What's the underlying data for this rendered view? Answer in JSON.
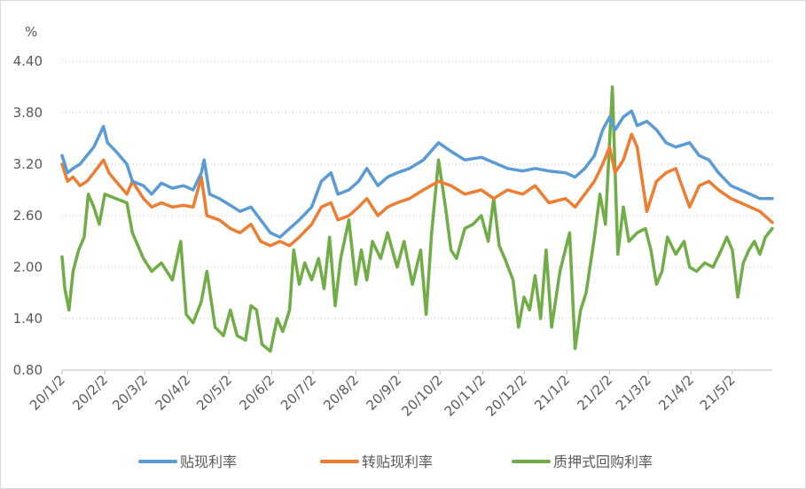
{
  "chart_data": {
    "type": "line",
    "ylabel": "%",
    "ylim": [
      0.8,
      4.4
    ],
    "y_ticks": [
      "4.40",
      "3.80",
      "3.20",
      "2.60",
      "2.00",
      "1.40",
      "0.80"
    ],
    "x_tick_labels": [
      "20/1/2",
      "20/2/2",
      "20/3/2",
      "20/4/2",
      "20/5/2",
      "20/6/2",
      "20/7/2",
      "20/8/2",
      "20/9/2",
      "20/10/2",
      "20/11/2",
      "20/12/2",
      "21/1/2",
      "21/2/2",
      "21/3/2",
      "21/4/2",
      "21/5/2"
    ],
    "x_range": [
      "2020-01-02",
      "2021-05-31"
    ],
    "grid": "horizontal-dotted",
    "legend_position": "bottom",
    "series": [
      {
        "name": "贴现利率",
        "color": "#5b9bd5",
        "points": [
          [
            "2020-01-02",
            3.3
          ],
          [
            "2020-01-06",
            3.1
          ],
          [
            "2020-01-10",
            3.15
          ],
          [
            "2020-01-15",
            3.2
          ],
          [
            "2020-01-20",
            3.3
          ],
          [
            "2020-01-25",
            3.4
          ],
          [
            "2020-02-01",
            3.64
          ],
          [
            "2020-02-04",
            3.45
          ],
          [
            "2020-02-10",
            3.35
          ],
          [
            "2020-02-18",
            3.2
          ],
          [
            "2020-02-22",
            3.0
          ],
          [
            "2020-03-01",
            2.95
          ],
          [
            "2020-03-07",
            2.85
          ],
          [
            "2020-03-14",
            2.98
          ],
          [
            "2020-03-22",
            2.92
          ],
          [
            "2020-03-30",
            2.95
          ],
          [
            "2020-04-06",
            2.9
          ],
          [
            "2020-04-12",
            3.1
          ],
          [
            "2020-04-14",
            3.25
          ],
          [
            "2020-04-18",
            2.85
          ],
          [
            "2020-04-25",
            2.8
          ],
          [
            "2020-05-03",
            2.72
          ],
          [
            "2020-05-10",
            2.65
          ],
          [
            "2020-05-18",
            2.7
          ],
          [
            "2020-05-25",
            2.55
          ],
          [
            "2020-06-01",
            2.4
          ],
          [
            "2020-06-08",
            2.35
          ],
          [
            "2020-06-15",
            2.45
          ],
          [
            "2020-06-22",
            2.55
          ],
          [
            "2020-07-01",
            2.7
          ],
          [
            "2020-07-08",
            3.0
          ],
          [
            "2020-07-15",
            3.1
          ],
          [
            "2020-07-20",
            2.85
          ],
          [
            "2020-07-28",
            2.9
          ],
          [
            "2020-08-04",
            3.0
          ],
          [
            "2020-08-10",
            3.15
          ],
          [
            "2020-08-18",
            2.95
          ],
          [
            "2020-08-25",
            3.05
          ],
          [
            "2020-09-01",
            3.1
          ],
          [
            "2020-09-10",
            3.15
          ],
          [
            "2020-09-20",
            3.25
          ],
          [
            "2020-10-01",
            3.45
          ],
          [
            "2020-10-10",
            3.35
          ],
          [
            "2020-10-20",
            3.25
          ],
          [
            "2020-11-01",
            3.28
          ],
          [
            "2020-11-10",
            3.22
          ],
          [
            "2020-11-20",
            3.15
          ],
          [
            "2020-12-01",
            3.12
          ],
          [
            "2020-12-10",
            3.15
          ],
          [
            "2020-12-20",
            3.12
          ],
          [
            "2021-01-01",
            3.1
          ],
          [
            "2021-01-08",
            3.05
          ],
          [
            "2021-01-15",
            3.15
          ],
          [
            "2021-01-22",
            3.3
          ],
          [
            "2021-01-28",
            3.6
          ],
          [
            "2021-02-02",
            3.75
          ],
          [
            "2021-02-06",
            3.6
          ],
          [
            "2021-02-12",
            3.75
          ],
          [
            "2021-02-18",
            3.82
          ],
          [
            "2021-02-22",
            3.65
          ],
          [
            "2021-03-01",
            3.7
          ],
          [
            "2021-03-08",
            3.6
          ],
          [
            "2021-03-15",
            3.45
          ],
          [
            "2021-03-22",
            3.4
          ],
          [
            "2021-04-01",
            3.45
          ],
          [
            "2021-04-08",
            3.3
          ],
          [
            "2021-04-15",
            3.25
          ],
          [
            "2021-04-22",
            3.1
          ],
          [
            "2021-05-01",
            2.95
          ],
          [
            "2021-05-08",
            2.9
          ],
          [
            "2021-05-15",
            2.85
          ],
          [
            "2021-05-22",
            2.8
          ],
          [
            "2021-05-31",
            2.8
          ]
        ]
      },
      {
        "name": "转贴现利率",
        "color": "#ed7d31",
        "points": [
          [
            "2020-01-02",
            3.2
          ],
          [
            "2020-01-06",
            3.0
          ],
          [
            "2020-01-10",
            3.05
          ],
          [
            "2020-01-15",
            2.95
          ],
          [
            "2020-01-20",
            3.0
          ],
          [
            "2020-01-25",
            3.1
          ],
          [
            "2020-02-01",
            3.25
          ],
          [
            "2020-02-05",
            3.1
          ],
          [
            "2020-02-10",
            3.0
          ],
          [
            "2020-02-18",
            2.85
          ],
          [
            "2020-02-22",
            3.0
          ],
          [
            "2020-03-01",
            2.8
          ],
          [
            "2020-03-07",
            2.7
          ],
          [
            "2020-03-14",
            2.75
          ],
          [
            "2020-03-22",
            2.7
          ],
          [
            "2020-03-30",
            2.72
          ],
          [
            "2020-04-06",
            2.7
          ],
          [
            "2020-04-12",
            3.05
          ],
          [
            "2020-04-16",
            2.6
          ],
          [
            "2020-04-25",
            2.55
          ],
          [
            "2020-05-03",
            2.45
          ],
          [
            "2020-05-10",
            2.4
          ],
          [
            "2020-05-18",
            2.5
          ],
          [
            "2020-05-25",
            2.3
          ],
          [
            "2020-06-01",
            2.25
          ],
          [
            "2020-06-08",
            2.3
          ],
          [
            "2020-06-15",
            2.25
          ],
          [
            "2020-06-22",
            2.35
          ],
          [
            "2020-07-01",
            2.5
          ],
          [
            "2020-07-08",
            2.7
          ],
          [
            "2020-07-15",
            2.75
          ],
          [
            "2020-07-20",
            2.55
          ],
          [
            "2020-07-28",
            2.6
          ],
          [
            "2020-08-04",
            2.7
          ],
          [
            "2020-08-10",
            2.8
          ],
          [
            "2020-08-18",
            2.6
          ],
          [
            "2020-08-25",
            2.7
          ],
          [
            "2020-09-01",
            2.75
          ],
          [
            "2020-09-10",
            2.8
          ],
          [
            "2020-09-20",
            2.9
          ],
          [
            "2020-10-01",
            3.0
          ],
          [
            "2020-10-10",
            2.95
          ],
          [
            "2020-10-20",
            2.85
          ],
          [
            "2020-11-01",
            2.9
          ],
          [
            "2020-11-10",
            2.8
          ],
          [
            "2020-11-20",
            2.9
          ],
          [
            "2020-12-01",
            2.85
          ],
          [
            "2020-12-10",
            2.95
          ],
          [
            "2020-12-20",
            2.75
          ],
          [
            "2021-01-01",
            2.8
          ],
          [
            "2021-01-08",
            2.7
          ],
          [
            "2021-01-15",
            2.85
          ],
          [
            "2021-01-22",
            3.0
          ],
          [
            "2021-01-28",
            3.2
          ],
          [
            "2021-02-02",
            3.4
          ],
          [
            "2021-02-06",
            3.1
          ],
          [
            "2021-02-12",
            3.25
          ],
          [
            "2021-02-18",
            3.55
          ],
          [
            "2021-02-22",
            3.4
          ],
          [
            "2021-03-01",
            2.65
          ],
          [
            "2021-03-08",
            3.0
          ],
          [
            "2021-03-15",
            3.1
          ],
          [
            "2021-03-22",
            3.15
          ],
          [
            "2021-04-01",
            2.7
          ],
          [
            "2021-04-08",
            2.95
          ],
          [
            "2021-04-15",
            3.0
          ],
          [
            "2021-04-22",
            2.9
          ],
          [
            "2021-05-01",
            2.8
          ],
          [
            "2021-05-08",
            2.75
          ],
          [
            "2021-05-15",
            2.7
          ],
          [
            "2021-05-22",
            2.65
          ],
          [
            "2021-05-31",
            2.52
          ]
        ]
      },
      {
        "name": "质押式回购利率",
        "color": "#70ad47",
        "points": [
          [
            "2020-01-02",
            2.12
          ],
          [
            "2020-01-04",
            1.75
          ],
          [
            "2020-01-07",
            1.5
          ],
          [
            "2020-01-10",
            1.95
          ],
          [
            "2020-01-14",
            2.2
          ],
          [
            "2020-01-18",
            2.35
          ],
          [
            "2020-01-21",
            2.85
          ],
          [
            "2020-01-25",
            2.7
          ],
          [
            "2020-01-29",
            2.5
          ],
          [
            "2020-02-02",
            2.85
          ],
          [
            "2020-02-10",
            2.8
          ],
          [
            "2020-02-18",
            2.75
          ],
          [
            "2020-02-22",
            2.4
          ],
          [
            "2020-03-01",
            2.1
          ],
          [
            "2020-03-07",
            1.95
          ],
          [
            "2020-03-14",
            2.05
          ],
          [
            "2020-03-22",
            1.85
          ],
          [
            "2020-03-28",
            2.3
          ],
          [
            "2020-04-01",
            1.45
          ],
          [
            "2020-04-06",
            1.35
          ],
          [
            "2020-04-12",
            1.6
          ],
          [
            "2020-04-16",
            1.95
          ],
          [
            "2020-04-22",
            1.3
          ],
          [
            "2020-04-28",
            1.2
          ],
          [
            "2020-05-03",
            1.5
          ],
          [
            "2020-05-08",
            1.2
          ],
          [
            "2020-05-14",
            1.15
          ],
          [
            "2020-05-18",
            1.55
          ],
          [
            "2020-05-22",
            1.5
          ],
          [
            "2020-05-26",
            1.1
          ],
          [
            "2020-06-01",
            1.02
          ],
          [
            "2020-06-06",
            1.4
          ],
          [
            "2020-06-10",
            1.25
          ],
          [
            "2020-06-15",
            1.5
          ],
          [
            "2020-06-18",
            2.2
          ],
          [
            "2020-06-22",
            1.8
          ],
          [
            "2020-06-26",
            2.05
          ],
          [
            "2020-07-01",
            1.85
          ],
          [
            "2020-07-06",
            2.1
          ],
          [
            "2020-07-10",
            1.75
          ],
          [
            "2020-07-14",
            2.35
          ],
          [
            "2020-07-18",
            1.55
          ],
          [
            "2020-07-22",
            2.1
          ],
          [
            "2020-07-28",
            2.55
          ],
          [
            "2020-08-02",
            1.8
          ],
          [
            "2020-08-06",
            2.2
          ],
          [
            "2020-08-10",
            1.85
          ],
          [
            "2020-08-14",
            2.3
          ],
          [
            "2020-08-20",
            2.1
          ],
          [
            "2020-08-25",
            2.4
          ],
          [
            "2020-09-01",
            2.0
          ],
          [
            "2020-09-06",
            2.3
          ],
          [
            "2020-09-12",
            1.8
          ],
          [
            "2020-09-18",
            2.2
          ],
          [
            "2020-09-22",
            1.45
          ],
          [
            "2020-09-26",
            2.4
          ],
          [
            "2020-10-01",
            3.25
          ],
          [
            "2020-10-06",
            2.7
          ],
          [
            "2020-10-10",
            2.2
          ],
          [
            "2020-10-14",
            2.1
          ],
          [
            "2020-10-20",
            2.45
          ],
          [
            "2020-10-26",
            2.5
          ],
          [
            "2020-11-01",
            2.6
          ],
          [
            "2020-11-06",
            2.3
          ],
          [
            "2020-11-10",
            2.8
          ],
          [
            "2020-11-14",
            2.25
          ],
          [
            "2020-11-18",
            2.1
          ],
          [
            "2020-11-24",
            1.85
          ],
          [
            "2020-11-28",
            1.3
          ],
          [
            "2020-12-02",
            1.65
          ],
          [
            "2020-12-06",
            1.5
          ],
          [
            "2020-12-10",
            1.9
          ],
          [
            "2020-12-14",
            1.4
          ],
          [
            "2020-12-18",
            2.2
          ],
          [
            "2020-12-22",
            1.3
          ],
          [
            "2020-12-28",
            1.95
          ],
          [
            "2021-01-04",
            2.4
          ],
          [
            "2021-01-08",
            1.05
          ],
          [
            "2021-01-12",
            1.5
          ],
          [
            "2021-01-16",
            1.7
          ],
          [
            "2021-01-22",
            2.35
          ],
          [
            "2021-01-26",
            2.85
          ],
          [
            "2021-01-30",
            2.5
          ],
          [
            "2021-02-04",
            4.1
          ],
          [
            "2021-02-08",
            2.15
          ],
          [
            "2021-02-12",
            2.7
          ],
          [
            "2021-02-16",
            2.3
          ],
          [
            "2021-02-22",
            2.4
          ],
          [
            "2021-02-28",
            2.45
          ],
          [
            "2021-03-04",
            2.2
          ],
          [
            "2021-03-08",
            1.8
          ],
          [
            "2021-03-12",
            1.95
          ],
          [
            "2021-03-16",
            2.35
          ],
          [
            "2021-03-22",
            2.15
          ],
          [
            "2021-03-28",
            2.3
          ],
          [
            "2021-04-01",
            2.0
          ],
          [
            "2021-04-06",
            1.95
          ],
          [
            "2021-04-12",
            2.05
          ],
          [
            "2021-04-18",
            2.0
          ],
          [
            "2021-04-24",
            2.2
          ],
          [
            "2021-04-28",
            2.35
          ],
          [
            "2021-05-02",
            2.2
          ],
          [
            "2021-05-06",
            1.65
          ],
          [
            "2021-05-10",
            2.05
          ],
          [
            "2021-05-14",
            2.2
          ],
          [
            "2021-05-18",
            2.3
          ],
          [
            "2021-05-22",
            2.15
          ],
          [
            "2021-05-26",
            2.35
          ],
          [
            "2021-05-31",
            2.45
          ]
        ]
      }
    ]
  }
}
